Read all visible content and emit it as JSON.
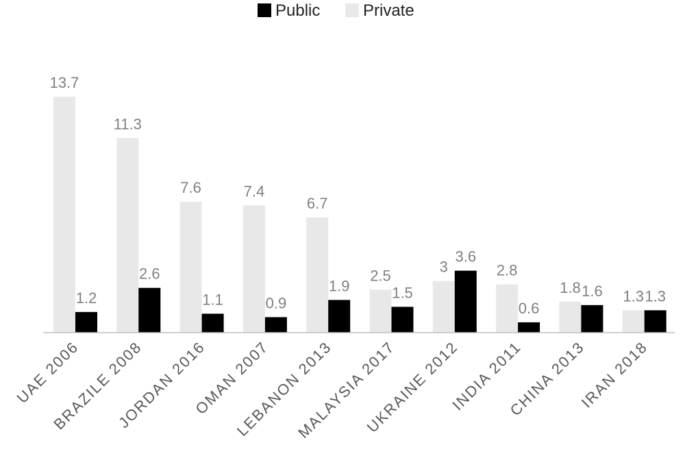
{
  "chart_data": {
    "type": "bar",
    "title": "",
    "xlabel": "",
    "ylabel": "",
    "categories": [
      "UAE 2006",
      "BRAZILE 2008",
      "JORDAN 2016",
      "OMAN 2007",
      "LEBANON 2013",
      "MALAYSIA 2017",
      "UKRAINE 2012",
      "INDIA 2011",
      "CHINA 2013",
      "IRAN 2018"
    ],
    "series": [
      {
        "name": "Private",
        "color": "#e8e8e8",
        "values": [
          13.7,
          11.3,
          7.6,
          7.4,
          6.7,
          2.5,
          3,
          2.8,
          1.8,
          1.3
        ]
      },
      {
        "name": "Public",
        "color": "#000000",
        "values": [
          1.2,
          2.6,
          1.1,
          0.9,
          1.9,
          1.5,
          3.6,
          0.6,
          1.6,
          1.3
        ]
      }
    ],
    "legend_order": [
      "Public",
      "Private"
    ],
    "legend_position": "top-center",
    "ylim": [
      0,
      14
    ],
    "grid": false,
    "data_labels": true
  }
}
